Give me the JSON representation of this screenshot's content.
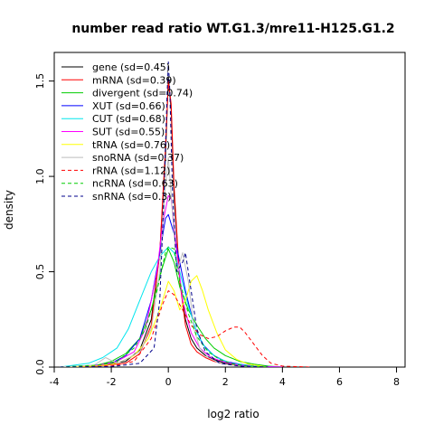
{
  "chart_data": {
    "type": "line",
    "title": "number read ratio WT.G1.3/mre11-H125.G1.2",
    "xlabel": "log2 ratio",
    "ylabel": "density",
    "xlim": [
      -4,
      8.3
    ],
    "ylim": [
      0,
      1.65
    ],
    "xticks": [
      -4,
      -2,
      0,
      2,
      4,
      6,
      8
    ],
    "yticks": [
      0.0,
      0.5,
      1.0,
      1.5
    ],
    "yticklabels": [
      "0.0",
      "0.5",
      "1.0",
      "1.5"
    ],
    "legend_position": "top-left",
    "series": [
      {
        "name": "gene (sd=0.45)",
        "color": "#000000",
        "dash": "solid",
        "x": [
          -3.8,
          -2.5,
          -1.5,
          -1.0,
          -0.6,
          -0.3,
          -0.1,
          0.0,
          0.1,
          0.2,
          0.4,
          0.6,
          0.8,
          1.0,
          1.3,
          1.6,
          2.0,
          2.5,
          3.0,
          4.0
        ],
        "y": [
          0,
          0.005,
          0.03,
          0.09,
          0.25,
          0.6,
          1.1,
          1.52,
          1.35,
          0.9,
          0.45,
          0.25,
          0.15,
          0.1,
          0.06,
          0.04,
          0.02,
          0.01,
          0.005,
          0
        ]
      },
      {
        "name": "mRNA (sd=0.39)",
        "color": "#ff0000",
        "dash": "solid",
        "x": [
          -3.8,
          -2.5,
          -1.5,
          -1.0,
          -0.6,
          -0.3,
          -0.1,
          0.0,
          0.1,
          0.2,
          0.4,
          0.6,
          0.8,
          1.0,
          1.3,
          1.6,
          2.0,
          2.5,
          3.0,
          4.0
        ],
        "y": [
          0,
          0.005,
          0.02,
          0.07,
          0.22,
          0.6,
          1.15,
          1.5,
          1.38,
          0.95,
          0.45,
          0.22,
          0.12,
          0.08,
          0.05,
          0.03,
          0.015,
          0.01,
          0.005,
          0
        ]
      },
      {
        "name": "divergent (sd=0.74)",
        "color": "#00cd00",
        "dash": "solid",
        "x": [
          -3.8,
          -2.5,
          -2.0,
          -1.5,
          -1.0,
          -0.6,
          -0.3,
          0.0,
          0.2,
          0.4,
          0.7,
          1.0,
          1.3,
          1.6,
          2.0,
          2.5,
          3.0,
          3.5,
          4.0
        ],
        "y": [
          0,
          0.01,
          0.03,
          0.07,
          0.15,
          0.3,
          0.48,
          0.62,
          0.55,
          0.42,
          0.3,
          0.22,
          0.15,
          0.1,
          0.06,
          0.03,
          0.015,
          0.005,
          0
        ]
      },
      {
        "name": "XUT (sd=0.66)",
        "color": "#0000ff",
        "dash": "solid",
        "x": [
          -3.8,
          -2.5,
          -2.0,
          -1.5,
          -1.0,
          -0.6,
          -0.3,
          -0.1,
          0.0,
          0.2,
          0.4,
          0.6,
          0.9,
          1.2,
          1.6,
          2.0,
          2.5,
          3.0,
          4.0
        ],
        "y": [
          0,
          0.01,
          0.02,
          0.06,
          0.15,
          0.35,
          0.6,
          0.78,
          0.8,
          0.7,
          0.55,
          0.4,
          0.22,
          0.12,
          0.06,
          0.03,
          0.015,
          0.005,
          0
        ]
      },
      {
        "name": "CUT (sd=0.68)",
        "color": "#00e5ee",
        "dash": "solid",
        "x": [
          -3.8,
          -2.8,
          -2.3,
          -1.8,
          -1.4,
          -1.0,
          -0.6,
          -0.3,
          0.0,
          0.2,
          0.4,
          0.7,
          1.0,
          1.3,
          1.7,
          2.2,
          2.8,
          3.5
        ],
        "y": [
          0,
          0.02,
          0.05,
          0.1,
          0.2,
          0.35,
          0.5,
          0.58,
          0.63,
          0.6,
          0.5,
          0.32,
          0.18,
          0.1,
          0.05,
          0.02,
          0.008,
          0
        ]
      },
      {
        "name": "SUT (sd=0.55)",
        "color": "#ff00ff",
        "dash": "solid",
        "x": [
          -3.8,
          -2.5,
          -1.8,
          -1.2,
          -0.8,
          -0.4,
          -0.2,
          0.0,
          0.1,
          0.3,
          0.5,
          0.8,
          1.1,
          1.5,
          2.0,
          2.5,
          3.0,
          4.0
        ],
        "y": [
          0,
          0.008,
          0.03,
          0.08,
          0.2,
          0.5,
          0.75,
          0.9,
          0.88,
          0.6,
          0.35,
          0.18,
          0.1,
          0.05,
          0.025,
          0.01,
          0.004,
          0
        ]
      },
      {
        "name": "tRNA (sd=0.76)",
        "color": "#ffff00",
        "dash": "solid",
        "x": [
          -3.8,
          -2.5,
          -1.8,
          -1.2,
          -0.7,
          -0.3,
          0.0,
          0.2,
          0.4,
          0.6,
          0.8,
          1.0,
          1.2,
          1.4,
          1.7,
          2.0,
          2.4,
          2.8,
          3.5
        ],
        "y": [
          0,
          0.005,
          0.02,
          0.06,
          0.15,
          0.3,
          0.45,
          0.4,
          0.3,
          0.35,
          0.45,
          0.48,
          0.4,
          0.3,
          0.18,
          0.09,
          0.04,
          0.015,
          0
        ]
      },
      {
        "name": "snoRNA (sd=0.37)",
        "color": "#bebebe",
        "dash": "solid",
        "x": [
          -3.8,
          -2.6,
          -2.2,
          -1.8,
          -1.5,
          -1.0,
          -0.6,
          -0.3,
          -0.1,
          0.0,
          0.1,
          0.3,
          0.5,
          0.7,
          0.9,
          1.1,
          1.4,
          1.8,
          2.5,
          3.5
        ],
        "y": [
          0,
          0.01,
          0.05,
          0.02,
          0.04,
          0.08,
          0.2,
          0.5,
          0.95,
          1.1,
          0.9,
          0.5,
          0.6,
          0.45,
          0.2,
          0.1,
          0.05,
          0.02,
          0.005,
          0
        ]
      },
      {
        "name": "rRNA (sd=1.12)",
        "color": "#ff0000",
        "dash": "dashed",
        "x": [
          -3.8,
          -2.0,
          -1.2,
          -0.6,
          -0.2,
          0.0,
          0.2,
          0.5,
          0.8,
          1.1,
          1.4,
          1.7,
          2.0,
          2.3,
          2.5,
          2.7,
          3.0,
          3.3,
          3.6,
          4.0,
          5.0
        ],
        "y": [
          0,
          0.005,
          0.03,
          0.15,
          0.33,
          0.4,
          0.38,
          0.3,
          0.22,
          0.17,
          0.15,
          0.16,
          0.19,
          0.21,
          0.21,
          0.18,
          0.12,
          0.06,
          0.02,
          0.005,
          0
        ]
      },
      {
        "name": "ncRNA (sd=0.63)",
        "color": "#00cd00",
        "dash": "dashed",
        "x": [
          -3.8,
          -2.5,
          -1.8,
          -1.2,
          -0.8,
          -0.4,
          -0.1,
          0.0,
          0.2,
          0.4,
          0.7,
          1.0,
          1.4,
          1.8,
          2.3,
          2.8,
          3.5
        ],
        "y": [
          0,
          0.01,
          0.03,
          0.1,
          0.2,
          0.4,
          0.6,
          0.63,
          0.62,
          0.45,
          0.28,
          0.16,
          0.08,
          0.04,
          0.015,
          0.005,
          0
        ]
      },
      {
        "name": "snRNA (sd=0.3)",
        "color": "#00008b",
        "dash": "dashed",
        "x": [
          -3.8,
          -2.0,
          -1.0,
          -0.5,
          -0.3,
          -0.15,
          -0.05,
          0.0,
          0.05,
          0.15,
          0.3,
          0.5,
          0.6,
          0.8,
          1.0,
          1.3,
          1.8,
          2.5,
          3.5
        ],
        "y": [
          0,
          0.003,
          0.02,
          0.1,
          0.35,
          0.9,
          1.4,
          1.6,
          1.45,
          0.9,
          0.5,
          0.55,
          0.6,
          0.4,
          0.2,
          0.08,
          0.02,
          0.005,
          0
        ]
      }
    ]
  }
}
